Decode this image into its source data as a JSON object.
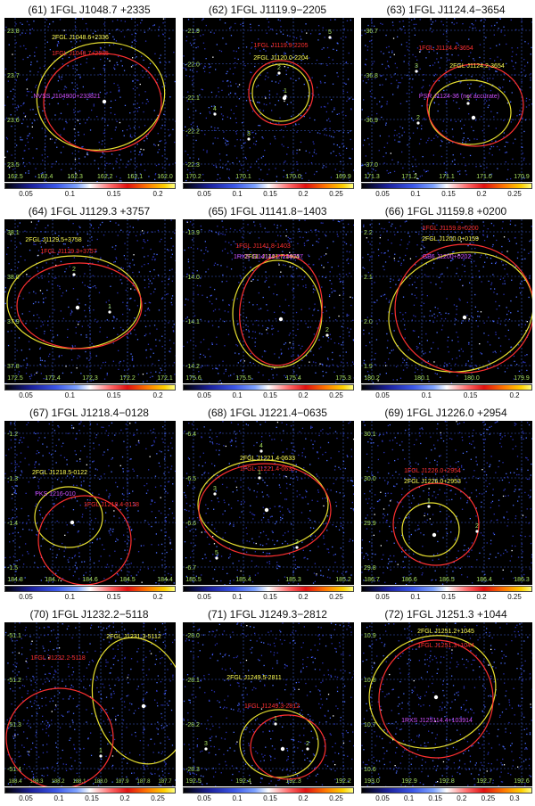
{
  "panels": [
    {
      "title": "(61) 1FGL J1048.7 +2335",
      "yticks": [
        "23.8",
        "23.7",
        "23.6",
        "23.5"
      ],
      "xticks": [
        "162.5",
        "162.4",
        "162.3",
        "162.2",
        "162.1",
        "162.0"
      ],
      "cbar": [
        "0.05",
        "0.1",
        "0.15",
        "0.2"
      ],
      "labels": [
        {
          "t": "2FGL J1048.6+2336",
          "c": "#ffff55"
        },
        {
          "t": "1FGL J1048.7+2335",
          "c": "#ff3030"
        },
        {
          "t": "NVSS J104900+233821",
          "c": "#d050ff"
        }
      ],
      "nums": []
    },
    {
      "title": "(62) 1FGL J1119.9−2205",
      "yticks": [
        "-21.9",
        "-22.0",
        "-22.1",
        "-22.2",
        "-22.3"
      ],
      "xticks": [
        "170.2",
        "170.1",
        "170.0",
        "169.9"
      ],
      "cbar": [
        "0.05",
        "0.1",
        "0.15",
        "0.2",
        "0.25"
      ],
      "labels": [
        {
          "t": "1FGL J1119.9-2205",
          "c": "#ff3030"
        },
        {
          "t": "2FGL J1120.0-2204",
          "c": "#ffff55"
        }
      ],
      "nums": [
        "5",
        "2",
        "1",
        "4",
        "3"
      ]
    },
    {
      "title": "(63) 1FGL J1124.4−3654",
      "yticks": [
        "-36.7",
        "-36.8",
        "-36.9",
        "-37.0"
      ],
      "xticks": [
        "171.3",
        "171.2",
        "171.1",
        "171.0",
        "170.9"
      ],
      "cbar": [
        "0.05",
        "0.1",
        "0.15",
        "0.2",
        "0.25"
      ],
      "labels": [
        {
          "t": "1FGL J1124.4-3654",
          "c": "#ff3030"
        },
        {
          "t": "2FGL J1124.2-3654",
          "c": "#ffff55"
        },
        {
          "t": "PSR J1124-36 (not accurate)",
          "c": "#d050ff"
        }
      ],
      "nums": [
        "3",
        "1",
        "2"
      ]
    },
    {
      "title": "(64) 1FGL J1129.3 +3757",
      "yticks": [
        "38.1",
        "38.0",
        "37.9",
        "37.8"
      ],
      "xticks": [
        "172.5",
        "172.4",
        "172.3",
        "172.2",
        "172.1"
      ],
      "cbar": [
        "0.05",
        "0.1",
        "0.15",
        "0.2"
      ],
      "labels": [
        {
          "t": "2FGL J1129.5+3758",
          "c": "#ffff55"
        },
        {
          "t": "1FGL J1129.3+3757",
          "c": "#ff3030"
        }
      ],
      "nums": [
        "2",
        "1"
      ]
    },
    {
      "title": "(65) 1FGL J1141.8−1403",
      "yticks": [
        "-13.9",
        "-14.0",
        "-14.1",
        "-14.2"
      ],
      "xticks": [
        "175.6",
        "175.5",
        "175.4",
        "175.3"
      ],
      "cbar": [
        "0.05",
        "0.1",
        "0.15",
        "0.2",
        "0.25"
      ],
      "labels": [
        {
          "t": "1FGL J1141.8-1403",
          "c": "#ff3030"
        },
        {
          "t": "2FGL J1141.7-1404",
          "c": "#ffff55"
        },
        {
          "t": "1RXS J114142.2-140757",
          "c": "#d050ff"
        }
      ],
      "nums": [
        "2"
      ]
    },
    {
      "title": "(66) 1FGL J1159.8 +0200",
      "yticks": [
        "2.2",
        "2.1",
        "2.0",
        "1.9"
      ],
      "xticks": [
        "180.2",
        "180.1",
        "180.0",
        "179.9"
      ],
      "cbar": [
        "0.05",
        "0.1",
        "0.15",
        "0.2"
      ],
      "labels": [
        {
          "t": "1FGL J1159.8+0200",
          "c": "#ff3030"
        },
        {
          "t": "2FGL J1200.0+0159",
          "c": "#ffff55"
        },
        {
          "t": "GB6 J1200+0202",
          "c": "#d050ff"
        }
      ],
      "nums": []
    },
    {
      "title": "(67) 1FGL J1218.4−0128",
      "yticks": [
        "-1.2",
        "-1.3",
        "-1.4",
        "-1.5"
      ],
      "xticks": [
        "184.8",
        "184.7",
        "184.6",
        "184.5",
        "184.4"
      ],
      "cbar": [
        "0.05",
        "0.1",
        "0.15",
        "0.2"
      ],
      "labels": [
        {
          "t": "2FGL J1218.5-0122",
          "c": "#ffff55"
        },
        {
          "t": "PKS 1216-010",
          "c": "#d050ff"
        },
        {
          "t": "1FGL J1218.4-0128",
          "c": "#ff3030"
        }
      ],
      "nums": []
    },
    {
      "title": "(68) 1FGL J1221.4−0635",
      "yticks": [
        "-6.4",
        "-6.5",
        "-6.6",
        "-6.7"
      ],
      "xticks": [
        "185.5",
        "185.4",
        "185.3",
        "185.2"
      ],
      "cbar": [
        "0.05",
        "0.1",
        "0.15",
        "0.2",
        "0.25"
      ],
      "labels": [
        {
          "t": "2FGL J1221.4-0633",
          "c": "#ffff55"
        },
        {
          "t": "1FGL J1221.4-0635",
          "c": "#ff3030"
        }
      ],
      "nums": [
        "4",
        "1",
        "3",
        "2",
        "5"
      ]
    },
    {
      "title": "(69) 1FGL J1226.0 +2954",
      "yticks": [
        "30.1",
        "30.0",
        "29.9",
        "29.8"
      ],
      "xticks": [
        "186.7",
        "186.6",
        "186.5",
        "186.4",
        "186.3"
      ],
      "cbar": [
        "0.05",
        "0.1",
        "0.15",
        "0.2",
        "0.25"
      ],
      "labels": [
        {
          "t": "1FGL J1226.0+2954",
          "c": "#ff3030"
        },
        {
          "t": "2FGL J1226.0+2953",
          "c": "#ffff55"
        }
      ],
      "nums": [
        "1",
        "2"
      ]
    },
    {
      "title": "(70) 1FGL J1232.2−5118",
      "yticks": [
        "-51.1",
        "-51.2",
        "-51.3",
        "-51.4"
      ],
      "xticks": [
        "188.4",
        "188.3",
        "188.2",
        "188.1",
        "188.0",
        "187.9",
        "187.8",
        "187.7"
      ],
      "cbar": [
        "0.05",
        "0.1",
        "0.15",
        "0.2",
        "0.25"
      ],
      "labels": [
        {
          "t": "2FGL J1231.3-5112",
          "c": "#ffff55"
        },
        {
          "t": "1FGL J1232.2-5118",
          "c": "#ff3030"
        }
      ],
      "nums": [
        "1"
      ]
    },
    {
      "title": "(71) 1FGL J1249.3−2812",
      "yticks": [
        "-28.0",
        "-28.1",
        "-28.2",
        "-28.3"
      ],
      "xticks": [
        "192.5",
        "192.4",
        "192.3",
        "192.2"
      ],
      "cbar": [
        "0.05",
        "0.1",
        "0.15",
        "0.2",
        "0.25"
      ],
      "labels": [
        {
          "t": "2FGL J1249.5-2811",
          "c": "#ffff55"
        },
        {
          "t": "1FGL J1249.3-2812",
          "c": "#ff3030"
        }
      ],
      "nums": [
        "1",
        "3",
        "2"
      ]
    },
    {
      "title": "(72) 1FGL J1251.3 +1044",
      "yticks": [
        "10.9",
        "10.8",
        "10.7",
        "10.6"
      ],
      "xticks": [
        "193.0",
        "192.9",
        "192.8",
        "192.7",
        "192.6"
      ],
      "cbar": [
        "0.05",
        "0.1",
        "0.15",
        "0.2",
        "0.25",
        "0.3"
      ],
      "labels": [
        {
          "t": "2FGL J1251.2+1045",
          "c": "#ffff55"
        },
        {
          "t": "1FGL J1251.3+1044",
          "c": "#ff3030"
        },
        {
          "t": "1RXS J125114.4+103914",
          "c": "#d050ff"
        }
      ],
      "nums": []
    }
  ]
}
